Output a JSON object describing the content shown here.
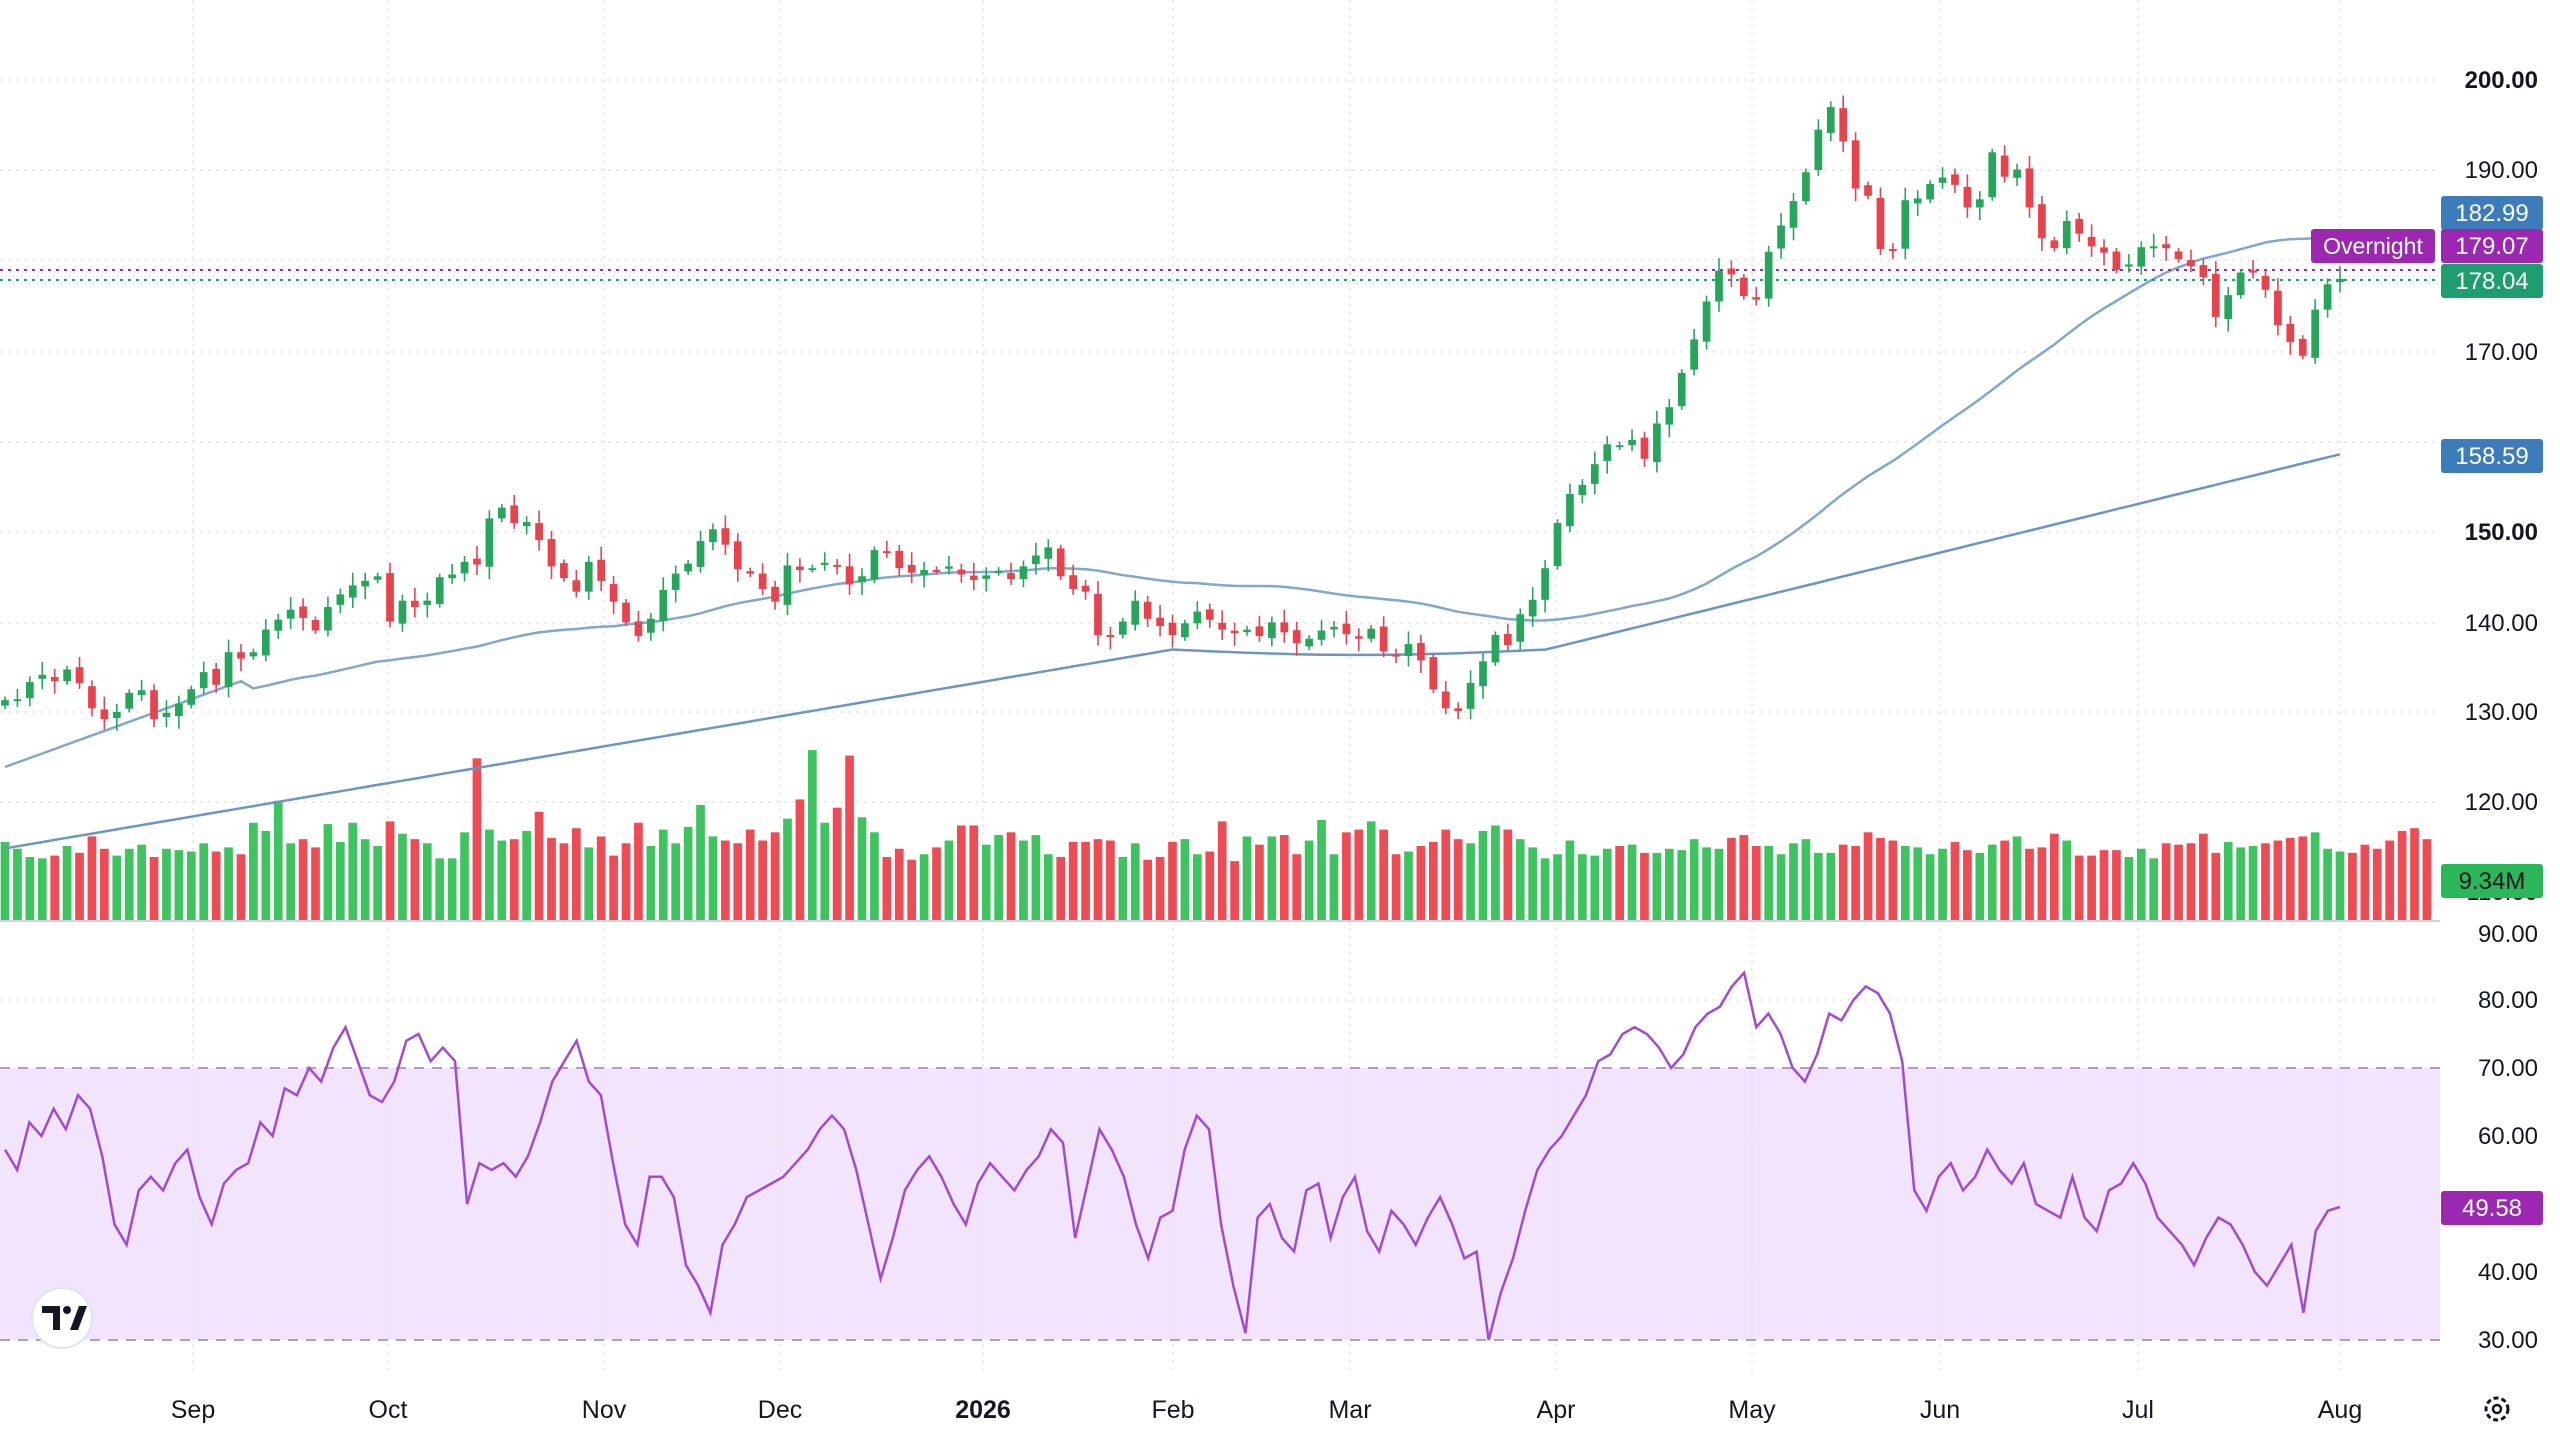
{
  "colors": {
    "up": "#26a65b",
    "down": "#e8424d",
    "vol_up": "#3ec45e",
    "vol_down": "#ef4b55",
    "ma_fast": "#7fa8cc",
    "ma_slow": "#6b96c4",
    "rsi_line": "#a14ad3",
    "rsi_band": "#f1e4fc",
    "last_price": "#1e9e6e",
    "overnight": "#9c27b0",
    "ma_label": "#3d7cba",
    "volume_badge": "#2bb65a",
    "grid": "#e4e6ea",
    "axis_text": "#131722"
  },
  "price_axis": {
    "ticks": [
      "200.00",
      "190.00",
      "170.00",
      "150.00",
      "140.00",
      "130.00",
      "120.00",
      "110.00"
    ]
  },
  "rsi_axis": {
    "ticks": [
      "90.00",
      "80.00",
      "70.00",
      "60.00",
      "40.00",
      "30.00"
    ]
  },
  "time_axis": {
    "labels": [
      "Sep",
      "Oct",
      "Nov",
      "Dec",
      "2026",
      "Feb",
      "Mar",
      "Apr",
      "May",
      "Jun",
      "Jul",
      "Aug"
    ]
  },
  "badges": {
    "ma_fast": "182.99",
    "overnight_label": "Overnight",
    "overnight_value": "179.07",
    "last_price": "178.04",
    "ma_slow": "158.59",
    "volume": "9.34M",
    "rsi": "49.58"
  },
  "chart_data": [
    {
      "type": "candlestick",
      "title": "",
      "xlabel": "",
      "ylabel": "",
      "ylim": [
        105,
        202
      ],
      "x_ticks": [
        "Sep",
        "Oct",
        "Nov",
        "Dec",
        "2026",
        "Feb",
        "Mar",
        "Apr",
        "May",
        "Jun",
        "Jul",
        "Aug"
      ],
      "close_series": [
        131.4,
        131.5,
        133.4,
        134.2,
        133.5,
        134.8,
        133.3,
        130.5,
        129.3,
        130.1,
        132.2,
        132.5,
        129.3,
        130.0,
        131.0,
        132.6,
        134.5,
        133.1,
        136.7,
        136.0,
        136.7,
        139.2,
        140.3,
        141.4,
        140.5,
        139.1,
        141.7,
        143.1,
        144.1,
        144.6,
        145.1,
        140.1,
        142.4,
        141.7,
        142.4,
        145.0,
        145.3,
        146.7,
        146.4,
        151.5,
        152.7,
        151.0,
        151.1,
        149.1,
        146.2,
        144.9,
        143.4,
        146.7,
        144.6,
        142.3,
        140.0,
        138.5,
        140.4,
        143.6,
        145.4,
        146.5,
        149.0,
        150.3,
        148.6,
        145.9,
        145.4,
        143.7,
        142.3,
        146.3,
        145.8,
        146.0,
        146.6,
        146.2,
        144.2,
        145.1,
        148.0,
        147.8,
        146.0,
        145.5,
        145.8,
        145.7,
        146.2,
        145.3,
        144.7,
        145.2,
        145.7,
        144.8,
        146.2,
        147.4,
        148.3,
        145.1,
        143.7,
        143.4,
        138.6,
        138.4,
        140.1,
        142.4,
        140.4,
        139.6,
        138.6,
        139.9,
        141.2,
        140.3,
        139.2,
        138.8,
        139.2,
        138.5,
        140.0,
        138.9,
        137.7,
        138.2,
        139.1,
        139.5,
        138.7,
        138.2,
        139.3,
        136.8,
        136.4,
        137.6,
        135.8,
        132.6,
        130.5,
        130.2,
        133.3,
        135.7,
        138.6,
        137.5,
        140.9,
        142.5,
        146.0,
        151.0,
        154.2,
        155.2,
        157.5,
        159.7,
        159.6,
        160.2,
        158.1,
        162.0,
        163.8,
        167.6,
        171.3,
        175.5,
        178.9,
        178.5,
        176.1,
        175.7,
        181.0,
        183.9,
        186.6,
        189.8,
        194.5,
        197.0,
        193.2,
        188.0,
        187.2,
        181.3,
        181.1,
        186.7,
        186.9,
        188.5,
        189.2,
        188.4,
        185.9,
        186.8,
        192.0,
        189.3,
        190.1,
        185.9,
        182.5,
        181.4,
        184.4,
        183.0,
        181.6,
        180.9,
        179.0,
        179.6,
        181.5,
        181.6,
        181.4,
        180.2,
        179.4,
        178.2,
        173.8,
        176.2,
        178.7,
        178.7,
        176.8,
        172.9,
        171.0,
        169.5,
        174.6,
        177.4,
        178.0
      ],
      "series": [
        {
          "name": "",
          "kind": "moving_average_fast",
          "last_value": 182.99
        },
        {
          "name": "",
          "kind": "moving_average_slow",
          "last_value": 158.59
        },
        {
          "name": "Overnight",
          "kind": "overnight_price",
          "last_value": 179.07
        },
        {
          "name": "",
          "kind": "last_price",
          "last_value": 178.04
        }
      ]
    },
    {
      "type": "bar",
      "title": "",
      "ylabel": "",
      "last_value": "9.34M",
      "relative_values": [
        0.57,
        0.52,
        0.46,
        0.45,
        0.47,
        0.54,
        0.49,
        0.61,
        0.52,
        0.47,
        0.52,
        0.55,
        0.46,
        0.52,
        0.51,
        0.5,
        0.56,
        0.5,
        0.53,
        0.48,
        0.71,
        0.65,
        0.87,
        0.56,
        0.59,
        0.53,
        0.7,
        0.57,
        0.71,
        0.59,
        0.54,
        0.72,
        0.63,
        0.59,
        0.56,
        0.45,
        0.45,
        0.64,
        1.18,
        0.66,
        0.58,
        0.59,
        0.65,
        0.79,
        0.6,
        0.56,
        0.67,
        0.53,
        0.61,
        0.47,
        0.56,
        0.71,
        0.54,
        0.66,
        0.56,
        0.68,
        0.84,
        0.61,
        0.58,
        0.56,
        0.66,
        0.58,
        0.64,
        0.74,
        0.88,
        1.24,
        0.71,
        0.82,
        1.2,
        0.75,
        0.64,
        0.46,
        0.52,
        0.44,
        0.48,
        0.53,
        0.58,
        0.69,
        0.69,
        0.55,
        0.62,
        0.64,
        0.58,
        0.62,
        0.48,
        0.46,
        0.57,
        0.57,
        0.59,
        0.58,
        0.46,
        0.56,
        0.44,
        0.46,
        0.57,
        0.59,
        0.48,
        0.5,
        0.72,
        0.43,
        0.61,
        0.55,
        0.61,
        0.62,
        0.48,
        0.58,
        0.73,
        0.48,
        0.64,
        0.66,
        0.72,
        0.66,
        0.48,
        0.5,
        0.54,
        0.57,
        0.66,
        0.59,
        0.56,
        0.65,
        0.69,
        0.66,
        0.59,
        0.53,
        0.45,
        0.48,
        0.58,
        0.48,
        0.47,
        0.52,
        0.54,
        0.55,
        0.49,
        0.49,
        0.52,
        0.51,
        0.59,
        0.53,
        0.52,
        0.6,
        0.62,
        0.54,
        0.54,
        0.48,
        0.56,
        0.59,
        0.49,
        0.49,
        0.55,
        0.54,
        0.64,
        0.6,
        0.58,
        0.54,
        0.53,
        0.48,
        0.52,
        0.57,
        0.51,
        0.49,
        0.55,
        0.58,
        0.61,
        0.52,
        0.53,
        0.63,
        0.58,
        0.47,
        0.47,
        0.51,
        0.51,
        0.46,
        0.52,
        0.45,
        0.56,
        0.55,
        0.56,
        0.63,
        0.49,
        0.57,
        0.53,
        0.54,
        0.56,
        0.58,
        0.6,
        0.61,
        0.64,
        0.52,
        0.5,
        0.49,
        0.55,
        0.52,
        0.58,
        0.65,
        0.67,
        0.59
      ]
    },
    {
      "type": "line",
      "title": "",
      "ylabel": "",
      "ylim": [
        30,
        90
      ],
      "band": [
        30,
        70
      ],
      "last_value": 49.58,
      "values": [
        58,
        55,
        62,
        60,
        64,
        61,
        66,
        64,
        57,
        47,
        44,
        52,
        54,
        52,
        56,
        58,
        51,
        47,
        53,
        55,
        56,
        62,
        60,
        67,
        66,
        70,
        68,
        73,
        76,
        71,
        66,
        65,
        68,
        74,
        75,
        71,
        73,
        71,
        50,
        56,
        55,
        56,
        54,
        57,
        62,
        68,
        71,
        74,
        68,
        66,
        56,
        47,
        44,
        54,
        54,
        51,
        41,
        38,
        34,
        44,
        47,
        51,
        52,
        53,
        54,
        56,
        58,
        61,
        63,
        61,
        55,
        47,
        39,
        45,
        52,
        55,
        57,
        54,
        50,
        47,
        53,
        56,
        54,
        52,
        55,
        57,
        61,
        59,
        45,
        53,
        61,
        58,
        54,
        47,
        42,
        48,
        49,
        58,
        63,
        61,
        47,
        38,
        31,
        48,
        50,
        45,
        43,
        52,
        53,
        45,
        51,
        54,
        46,
        43,
        49,
        47,
        44,
        48,
        51,
        47,
        42,
        43,
        30,
        37,
        42,
        49,
        55,
        58,
        60,
        63,
        66,
        71,
        72,
        75,
        76,
        75,
        73,
        70,
        72,
        76,
        78,
        79,
        82,
        84,
        76,
        78,
        75,
        70,
        68,
        72,
        78,
        77,
        80,
        82,
        81,
        78,
        71,
        52,
        49,
        54,
        56,
        52,
        54,
        58,
        55,
        53,
        56,
        50,
        49,
        48,
        54,
        48,
        46,
        52,
        53,
        56,
        53,
        48,
        46,
        44,
        41,
        45,
        48,
        47,
        44,
        40,
        38,
        41,
        44,
        34,
        46,
        49,
        49.58
      ]
    }
  ]
}
